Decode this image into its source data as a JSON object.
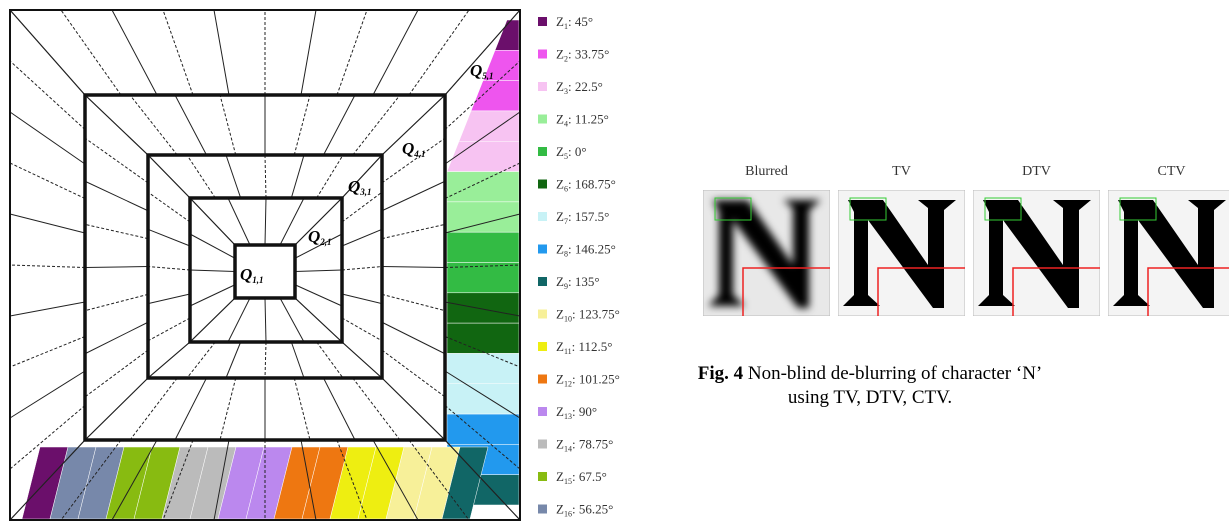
{
  "diagram": {
    "labels": [
      {
        "name": "Q",
        "sub": "1,1"
      },
      {
        "name": "Q",
        "sub": "2,1"
      },
      {
        "name": "Q",
        "sub": "3,1"
      },
      {
        "name": "Q",
        "sub": "4,1"
      },
      {
        "name": "Q",
        "sub": "5,1"
      }
    ]
  },
  "legend": [
    {
      "name": "Z",
      "sub": "1",
      "angle": "45°",
      "color": "#6b0f6b"
    },
    {
      "name": "Z",
      "sub": "2",
      "angle": "33.75°",
      "color": "#ee55ee"
    },
    {
      "name": "Z",
      "sub": "3",
      "angle": "22.5°",
      "color": "#f7c3f2"
    },
    {
      "name": "Z",
      "sub": "4",
      "angle": "11.25°",
      "color": "#99ee99"
    },
    {
      "name": "Z",
      "sub": "5",
      "angle": "0°",
      "color": "#33bb44"
    },
    {
      "name": "Z",
      "sub": "6",
      "angle": "168.75°",
      "color": "#116611"
    },
    {
      "name": "Z",
      "sub": "7",
      "angle": "157.5°",
      "color": "#c8f2f6"
    },
    {
      "name": "Z",
      "sub": "8",
      "angle": "146.25°",
      "color": "#2299ee"
    },
    {
      "name": "Z",
      "sub": "9",
      "angle": "135°",
      "color": "#116666"
    },
    {
      "name": "Z",
      "sub": "10",
      "angle": "123.75°",
      "color": "#f7f099"
    },
    {
      "name": "Z",
      "sub": "11",
      "angle": "112.5°",
      "color": "#eeee11"
    },
    {
      "name": "Z",
      "sub": "12",
      "angle": "101.25°",
      "color": "#ee7711"
    },
    {
      "name": "Z",
      "sub": "13",
      "angle": "90°",
      "color": "#bb88ee"
    },
    {
      "name": "Z",
      "sub": "14",
      "angle": "78.75°",
      "color": "#bbbbbb"
    },
    {
      "name": "Z",
      "sub": "15",
      "angle": "67.5°",
      "color": "#88bb11"
    },
    {
      "name": "Z",
      "sub": "16",
      "angle": "56.25°",
      "color": "#7788aa"
    }
  ],
  "figure": {
    "panels": [
      "Blurred",
      "TV",
      "DTV",
      "CTV"
    ],
    "caption": {
      "label": "Fig. 4",
      "text": "Non-blind de-blurring of character ‘N’ using TV, DTV, CTV."
    }
  }
}
